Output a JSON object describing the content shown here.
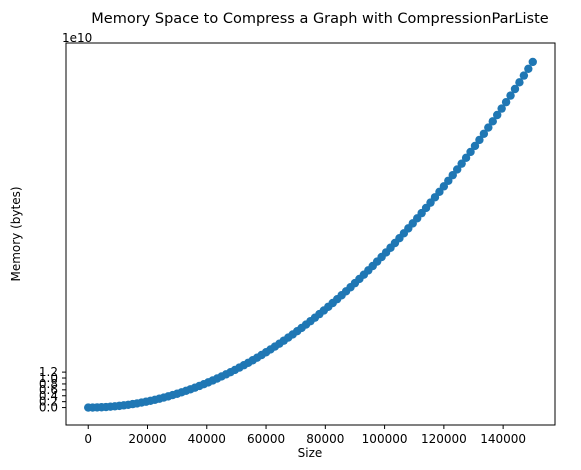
{
  "chart_data": {
    "type": "scatter",
    "title": "Memory Space to Compress a Graph with CompressionParListe",
    "xlabel": "Size",
    "ylabel": "Memory (bytes)",
    "y_offset_label": "1e10",
    "xlim": [
      -7500,
      157500
    ],
    "ylim": [
      -0.59,
      12.34
    ],
    "y_scale_factor": 10000000000,
    "x_ticks": [
      0,
      20000,
      40000,
      60000,
      80000,
      100000,
      120000,
      140000
    ],
    "x_tick_labels": [
      "0",
      "20000",
      "40000",
      "60000",
      "80000",
      "100000",
      "120000",
      "140000"
    ],
    "y_ticks": [
      0.0,
      0.2,
      0.4,
      0.6,
      0.8,
      1.0,
      1.2
    ],
    "y_tick_labels": [
      "0.0",
      "0.2",
      "0.4",
      "0.6",
      "0.8",
      "1.0",
      "1.2"
    ],
    "grid": false,
    "series": [
      {
        "color": "#1f77b4",
        "coefficient_1e10_per_size_squared": 5.2e-10,
        "x": [
          0,
          1500,
          3000,
          4500,
          6000,
          7500,
          9000,
          10500,
          12000,
          13500,
          15000,
          16500,
          18000,
          19500,
          21000,
          22500,
          24000,
          25500,
          27000,
          28500,
          30000,
          31500,
          33000,
          34500,
          36000,
          37500,
          39000,
          40500,
          42000,
          43500,
          45000,
          46500,
          48000,
          49500,
          51000,
          52500,
          54000,
          55500,
          57000,
          58500,
          60000,
          61500,
          63000,
          64500,
          66000,
          67500,
          69000,
          70500,
          72000,
          73500,
          75000,
          76500,
          78000,
          79500,
          81000,
          82500,
          84000,
          85500,
          87000,
          88500,
          90000,
          91500,
          93000,
          94500,
          96000,
          97500,
          99000,
          100500,
          102000,
          103500,
          105000,
          106500,
          108000,
          109500,
          111000,
          112500,
          114000,
          115500,
          117000,
          118500,
          120000,
          121500,
          123000,
          124500,
          126000,
          127500,
          129000,
          130500,
          132000,
          133500,
          135000,
          136500,
          138000,
          139500,
          141000,
          142500,
          144000,
          145500,
          147000,
          148500,
          150000
        ],
        "y_note": "y values in units of 1e10 bytes, approx 5.2e-10 * size^2"
      }
    ]
  }
}
